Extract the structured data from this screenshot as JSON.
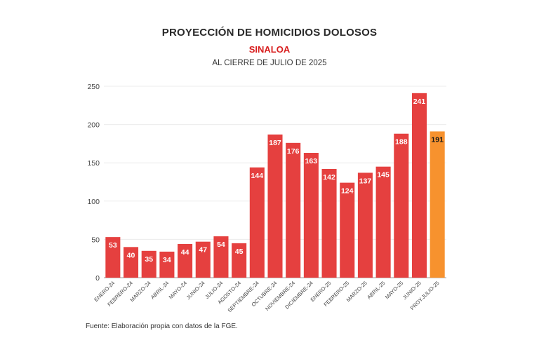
{
  "header": {
    "title": "PROYECCIÓN DE HOMICIDIOS DOLOSOS",
    "subtitle": "SINALOA",
    "period": "AL CIERRE DE JULIO DE 2025"
  },
  "footer": {
    "source": "Fuente: Elaboración propia con datos de la FGE."
  },
  "colors": {
    "bar": "#e5403f",
    "projection_bar": "#f7922e",
    "subtitle": "#d81e1e",
    "grid": "#ececec",
    "axis": "#999999",
    "label_text": "#ffffff",
    "projection_label_text": "#1a1a1a"
  },
  "chart_data": {
    "type": "bar",
    "title": "PROYECCIÓN DE HOMICIDIOS DOLOSOS",
    "xlabel": "",
    "ylabel": "",
    "ylim": [
      0,
      250
    ],
    "yticks": [
      0,
      50,
      100,
      150,
      200,
      250
    ],
    "grid": true,
    "categories": [
      "ENERO-24",
      "FEBRERO-24",
      "MARZO-24",
      "ABRIL-24",
      "MAYO-24",
      "JUNIO-24",
      "JULIO-24",
      "AGOSTO-24",
      "SEPTIEMBRE-24",
      "OCTUBRE-24",
      "NOVIEMBRE-24",
      "DICIEMBRE-24",
      "ENERO-25",
      "FEBRERO-25",
      "MARZO-25",
      "ABRIL-25",
      "MAYO-25",
      "JUNIO-25",
      "PROY.JULIO-25"
    ],
    "values": [
      53,
      40,
      35,
      34,
      44,
      47,
      54,
      45,
      144,
      187,
      176,
      163,
      142,
      124,
      137,
      145,
      188,
      241,
      191
    ],
    "projection_index": 18
  }
}
